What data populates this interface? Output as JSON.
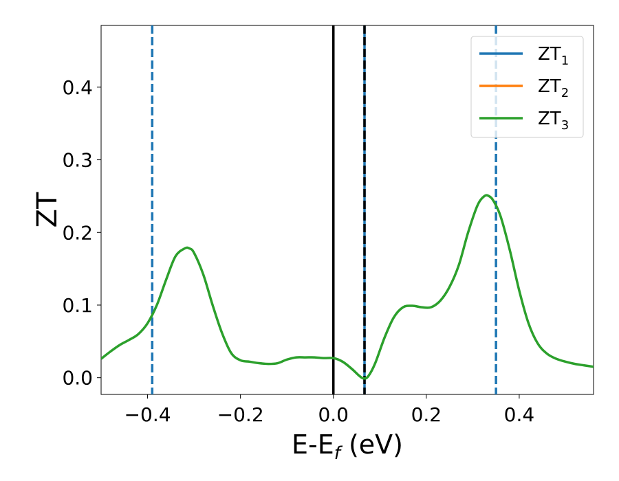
{
  "chart_data": {
    "type": "line",
    "xlabel": {
      "main": "E-E",
      "sub": "f",
      "unit": " (eV)"
    },
    "ylabel": "ZT",
    "xlim": [
      -0.5,
      0.56
    ],
    "ylim": [
      -0.023,
      0.485
    ],
    "xticks": [
      -0.4,
      -0.2,
      0.0,
      0.2,
      0.4
    ],
    "xtick_labels": [
      "−0.4",
      "−0.2",
      "0.0",
      "0.2",
      "0.4"
    ],
    "yticks": [
      0.0,
      0.1,
      0.2,
      0.3,
      0.4
    ],
    "ytick_labels": [
      "0.0",
      "0.1",
      "0.2",
      "0.3",
      "0.4"
    ],
    "grid": false,
    "legend_position": "top-right",
    "x": [
      -0.5,
      -0.48,
      -0.46,
      -0.44,
      -0.42,
      -0.4,
      -0.38,
      -0.36,
      -0.34,
      -0.32,
      -0.31,
      -0.3,
      -0.28,
      -0.26,
      -0.24,
      -0.22,
      -0.2,
      -0.18,
      -0.16,
      -0.14,
      -0.12,
      -0.1,
      -0.08,
      -0.06,
      -0.04,
      -0.02,
      0.0,
      0.02,
      0.04,
      0.055,
      0.065,
      0.075,
      0.09,
      0.11,
      0.13,
      0.15,
      0.17,
      0.19,
      0.21,
      0.23,
      0.25,
      0.27,
      0.29,
      0.31,
      0.325,
      0.335,
      0.345,
      0.36,
      0.38,
      0.4,
      0.42,
      0.44,
      0.46,
      0.48,
      0.5,
      0.52,
      0.54,
      0.56
    ],
    "series": [
      {
        "name": "ZT",
        "sub": "1",
        "color": "#1f77b4",
        "values": null
      },
      {
        "name": "ZT",
        "sub": "2",
        "color": "#ff7f0e",
        "values": null
      },
      {
        "name": "ZT",
        "sub": "3",
        "color": "#2ca02c",
        "values": [
          0.026,
          0.036,
          0.045,
          0.052,
          0.06,
          0.075,
          0.1,
          0.135,
          0.167,
          0.178,
          0.178,
          0.172,
          0.142,
          0.1,
          0.062,
          0.034,
          0.024,
          0.022,
          0.02,
          0.019,
          0.02,
          0.025,
          0.028,
          0.028,
          0.028,
          0.027,
          0.027,
          0.022,
          0.012,
          0.003,
          -0.001,
          0.002,
          0.02,
          0.055,
          0.083,
          0.097,
          0.099,
          0.097,
          0.097,
          0.106,
          0.125,
          0.155,
          0.2,
          0.237,
          0.25,
          0.25,
          0.243,
          0.222,
          0.175,
          0.12,
          0.075,
          0.047,
          0.033,
          0.026,
          0.022,
          0.019,
          0.017,
          0.015
        ]
      }
    ],
    "vlines": [
      {
        "x": -0.39,
        "color": "#1f77b4",
        "style": "dashed"
      },
      {
        "x": 0.0,
        "color": "#000000",
        "style": "solid"
      },
      {
        "x": 0.067,
        "color": "#1f77b4",
        "style": "solid"
      },
      {
        "x": 0.067,
        "color": "#000000",
        "style": "dashed"
      },
      {
        "x": 0.35,
        "color": "#1f77b4",
        "style": "dashed"
      }
    ]
  }
}
